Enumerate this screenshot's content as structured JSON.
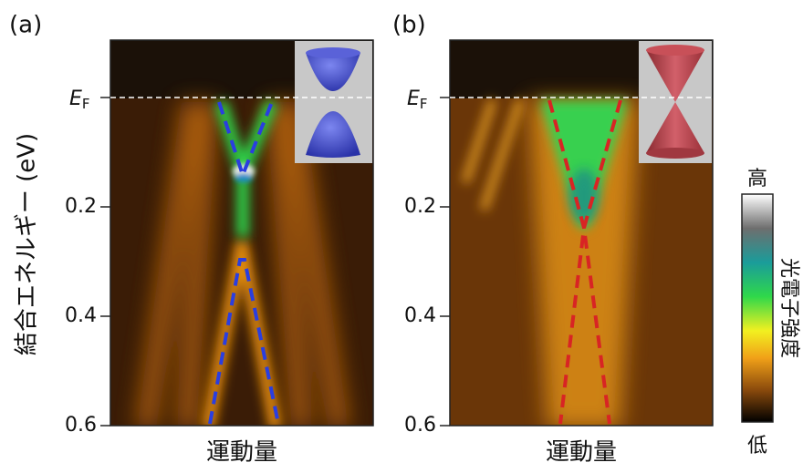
{
  "panels": [
    {
      "label": "(a)",
      "xlabel": "運動量",
      "ef": {
        "main": "E",
        "sub": "F"
      },
      "yticks": [
        0.2,
        0.4,
        0.6
      ]
    },
    {
      "label": "(b)",
      "xlabel": "運動量",
      "ef": {
        "main": "E",
        "sub": "F"
      },
      "yticks": [
        0.2,
        0.4,
        0.6
      ]
    }
  ],
  "ylabel": "結合エネルギー (eV)",
  "colorbar": {
    "high": "高",
    "low": "低",
    "label": "光電子強度"
  }
}
